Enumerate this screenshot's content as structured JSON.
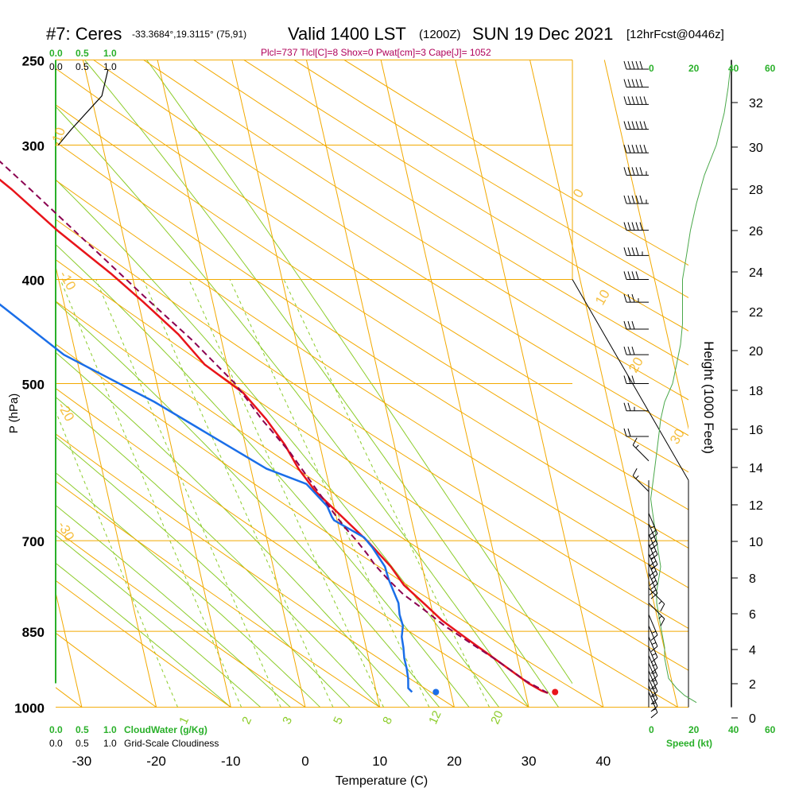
{
  "header": {
    "station": "#7: Ceres",
    "coords": "-33.3684°,19.3115° (75,91)",
    "valid": "Valid 1400 LST",
    "utc": "(1200Z)",
    "date": "SUN 19 Dec 2021",
    "forecast": "[12hrFcst@0446z]",
    "params": "Plcl=737 Tlcl[C]=8 Shox=0 Pwat[cm]=3 Cape[J]= 1052"
  },
  "colors": {
    "temperature": "#e8141a",
    "dewpoint": "#1a6ee8",
    "parcel": "#8b0050",
    "isotherm_grid": "#f2a900",
    "mixing_ratio": "#8ccc2a",
    "green_text": "#2ab02a",
    "wind_speed_line": "#4aa84a"
  },
  "chart_data": {
    "type": "line",
    "title": "",
    "xlabel": "Temperature (C)",
    "ylabel": "P (hPa)",
    "y2label": "Height (1000 Feet)",
    "x_ticks": [
      "-30",
      "-20",
      "-10",
      "0",
      "10",
      "20",
      "30",
      "40"
    ],
    "y_ticks": [
      "250",
      "300",
      "400",
      "500",
      "700",
      "850",
      "1000"
    ],
    "height_ticks": [
      "0",
      "2",
      "4",
      "6",
      "8",
      "10",
      "12",
      "14",
      "16",
      "18",
      "20",
      "22",
      "24",
      "26",
      "28",
      "30",
      "32"
    ],
    "isotherm_labels": [
      "-10",
      "0",
      "10",
      "20",
      "30",
      "-10",
      "-20",
      "-30"
    ],
    "moist_adiabat_labels": [
      "0",
      "10",
      "20",
      "30"
    ],
    "mixing_ratio_labels": [
      "1",
      "2",
      "3",
      "5",
      "8",
      "12",
      "20"
    ],
    "cloud_scale": {
      "top_green": [
        "0.0",
        "0.5",
        "1.0"
      ],
      "top_black": [
        "0.0",
        "0.5",
        "1.0"
      ],
      "bottom_green": [
        "0.0",
        "0.5",
        "1.0"
      ],
      "bottom_black": [
        "0.0",
        "0.5",
        "1.0"
      ],
      "cloud_water_label": "CloudWater (g/Kg)",
      "cloudiness_label": "Grid-Scale Cloudiness"
    },
    "speed_axis": {
      "ticks_green": [
        "0",
        "20",
        "40",
        "60"
      ],
      "ticks_black": [
        "0",
        "20",
        "40",
        "60"
      ],
      "label": "Speed (kt)"
    },
    "series": [
      {
        "name": "",
        "key": "temperature",
        "points": [
          [
            33.0,
            970
          ],
          [
            32.2,
            965
          ],
          [
            30.7,
            950
          ],
          [
            28.4,
            920
          ],
          [
            26.0,
            890
          ],
          [
            23.5,
            860
          ],
          [
            21.0,
            830
          ],
          [
            19.4,
            805
          ],
          [
            17.0,
            770
          ],
          [
            15.8,
            740
          ],
          [
            13.4,
            700
          ],
          [
            10.4,
            660
          ],
          [
            8.0,
            630
          ],
          [
            6.4,
            600
          ],
          [
            5.3,
            570
          ],
          [
            3.6,
            540
          ],
          [
            1.3,
            510
          ],
          [
            -3.0,
            480
          ],
          [
            -5.6,
            450
          ],
          [
            -9.3,
            420
          ],
          [
            -12.8,
            395
          ],
          [
            -18.7,
            360
          ],
          [
            -23.5,
            330
          ],
          [
            -29.5,
            300
          ],
          [
            -35.8,
            275
          ],
          [
            -42.0,
            255
          ]
        ]
      },
      {
        "name": "",
        "key": "dewpoint",
        "points": [
          [
            14.8,
            968
          ],
          [
            14.4,
            960
          ],
          [
            14.7,
            940
          ],
          [
            14.8,
            920
          ],
          [
            14.8,
            900
          ],
          [
            15.0,
            880
          ],
          [
            15.1,
            860
          ],
          [
            15.6,
            840
          ],
          [
            15.5,
            820
          ],
          [
            15.7,
            800
          ],
          [
            15.4,
            780
          ],
          [
            15.1,
            760
          ],
          [
            15.0,
            740
          ],
          [
            13.9,
            710
          ],
          [
            13.1,
            695
          ],
          [
            9.6,
            670
          ],
          [
            9.4,
            665
          ],
          [
            9.1,
            650
          ],
          [
            7.0,
            620
          ],
          [
            2.1,
            600
          ],
          [
            -10.9,
            520
          ],
          [
            -21.6,
            470
          ],
          [
            -28.2,
            425
          ],
          [
            -30.6,
            410
          ],
          [
            -31.7,
            400
          ],
          [
            -33.9,
            365
          ],
          [
            -38.6,
            335
          ],
          [
            -43.5,
            310
          ],
          [
            -47.0,
            298
          ],
          [
            -61.0,
            255
          ]
        ]
      },
      {
        "name": "",
        "key": "parcel",
        "points": [
          [
            33.0,
            970
          ],
          [
            30.4,
            945
          ],
          [
            27.2,
            905
          ],
          [
            24.0,
            870
          ],
          [
            21.2,
            840
          ],
          [
            18.8,
            810
          ],
          [
            16.6,
            785
          ],
          [
            15.0,
            760
          ],
          [
            13.7,
            737
          ],
          [
            13.0,
            720
          ],
          [
            12.0,
            700
          ],
          [
            10.8,
            680
          ],
          [
            9.8,
            660
          ],
          [
            8.3,
            630
          ],
          [
            5.8,
            580
          ],
          [
            3.0,
            540
          ],
          [
            0.5,
            500
          ],
          [
            -4.0,
            455
          ],
          [
            -9.0,
            415
          ],
          [
            -15.0,
            370
          ],
          [
            -21.0,
            330
          ],
          [
            -28.0,
            290
          ],
          [
            -36.0,
            255
          ]
        ]
      },
      {
        "name": "",
        "key": "wind_speed",
        "points": [
          [
            24,
            990
          ],
          [
            18,
            975
          ],
          [
            14,
            960
          ],
          [
            10,
            940
          ],
          [
            9,
            920
          ],
          [
            8,
            900
          ],
          [
            8,
            880
          ],
          [
            7,
            860
          ],
          [
            6,
            840
          ],
          [
            5,
            820
          ],
          [
            4,
            800
          ],
          [
            4,
            780
          ],
          [
            5,
            760
          ],
          [
            6,
            740
          ],
          [
            5,
            720
          ],
          [
            4,
            700
          ],
          [
            3,
            680
          ],
          [
            2,
            660
          ],
          [
            1,
            640
          ],
          [
            2,
            620
          ],
          [
            3,
            600
          ],
          [
            4,
            580
          ],
          [
            5,
            560
          ],
          [
            6,
            540
          ],
          [
            8,
            520
          ],
          [
            12,
            500
          ],
          [
            14,
            480
          ],
          [
            16,
            460
          ],
          [
            17,
            440
          ],
          [
            17,
            420
          ],
          [
            17,
            400
          ],
          [
            19,
            380
          ],
          [
            21,
            360
          ],
          [
            24,
            340
          ],
          [
            28,
            320
          ],
          [
            34,
            300
          ],
          [
            38,
            280
          ],
          [
            40,
            265
          ],
          [
            41,
            255
          ]
        ]
      }
    ],
    "surface_points": {
      "temperature": [
        34.0,
        968
      ],
      "dewpoint": [
        18.0,
        968
      ]
    },
    "cloudwater_profile": [
      [
        1.0,
        255
      ],
      [
        0.88,
        270
      ],
      [
        0.3,
        290
      ],
      [
        0.05,
        300
      ]
    ],
    "wind_barbs": [
      [
        255,
        "W",
        50
      ],
      [
        265,
        "W",
        50
      ],
      [
        275,
        "W",
        60
      ],
      [
        290,
        "W",
        60
      ],
      [
        305,
        "W",
        60
      ],
      [
        320,
        "W",
        55
      ],
      [
        340,
        "W",
        55
      ],
      [
        360,
        "W",
        50
      ],
      [
        380,
        "W",
        45
      ],
      [
        400,
        "W",
        40
      ],
      [
        420,
        "W",
        35
      ],
      [
        445,
        "W",
        30
      ],
      [
        470,
        "W",
        30
      ],
      [
        500,
        "W",
        30
      ],
      [
        530,
        "W",
        25
      ],
      [
        560,
        "W",
        20
      ],
      [
        590,
        "NW",
        15
      ],
      [
        630,
        "NW",
        15
      ],
      [
        660,
        "SSE",
        25
      ],
      [
        675,
        "SSE",
        25
      ],
      [
        690,
        "SSE",
        25
      ],
      [
        705,
        "SSE",
        25
      ],
      [
        720,
        "SSE",
        25
      ],
      [
        735,
        "SSE",
        20
      ],
      [
        750,
        "SSE",
        20
      ],
      [
        775,
        "SE",
        15
      ],
      [
        800,
        "SE",
        15
      ],
      [
        820,
        "SSE",
        15
      ],
      [
        840,
        "SSE",
        15
      ],
      [
        860,
        "SSE",
        15
      ],
      [
        880,
        "SSE",
        15
      ],
      [
        895,
        "SSE",
        15
      ],
      [
        910,
        "SSE",
        15
      ],
      [
        925,
        "SSE",
        15
      ],
      [
        940,
        "SSE",
        15
      ],
      [
        955,
        "SSE",
        15
      ],
      [
        968,
        "SSE",
        15
      ]
    ]
  }
}
